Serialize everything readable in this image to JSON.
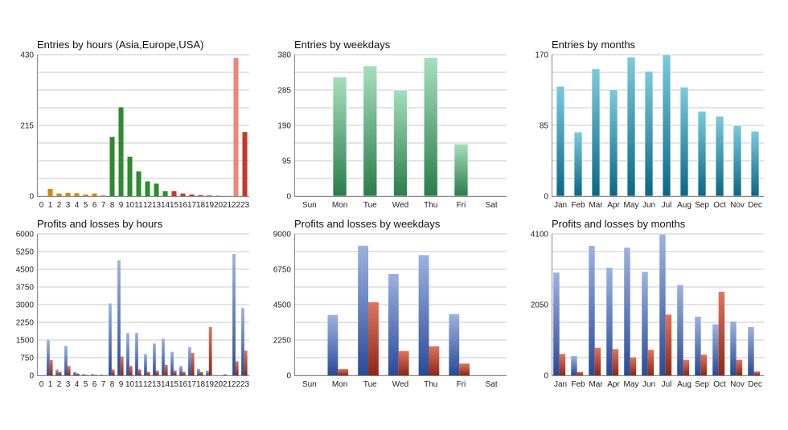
{
  "colors": {
    "orange": "#d38a0a",
    "green": "#2e8b2e",
    "red": "#c43a2a",
    "light_red": "#e8887c",
    "mint_top": "#a6dfbd",
    "mint_bottom": "#2a7d4a",
    "teal_top": "#7ccbdc",
    "teal_bottom": "#0a6785",
    "blue_top": "#9cb3e0",
    "blue_bottom": "#2a4a98",
    "loss_top": "#e0745d",
    "loss_bottom": "#8f2717",
    "grid": "#c8c8c8"
  },
  "chart_data": [
    {
      "id": "entries-hours",
      "type": "bar",
      "title": "Entries by hours (Asia,Europe,USA)",
      "categories": [
        "0",
        "1",
        "2",
        "3",
        "4",
        "5",
        "6",
        "7",
        "8",
        "9",
        "10",
        "11",
        "12",
        "13",
        "14",
        "15",
        "16",
        "17",
        "18",
        "19",
        "20",
        "21",
        "22",
        "23"
      ],
      "values": [
        0,
        22,
        8,
        10,
        9,
        5,
        8,
        2,
        180,
        270,
        120,
        75,
        45,
        38,
        15,
        15,
        8,
        5,
        3,
        2,
        1,
        0,
        420,
        195
      ],
      "bar_colors": [
        "orange",
        "orange",
        "orange",
        "orange",
        "orange",
        "orange",
        "orange",
        "orange",
        "green",
        "green",
        "green",
        "green",
        "green",
        "green",
        "green",
        "red",
        "red",
        "red",
        "red",
        "red",
        "red",
        "red",
        "light_red",
        "red"
      ],
      "yticks": [
        0,
        215,
        430
      ],
      "ylim": [
        0,
        430
      ],
      "grid": true
    },
    {
      "id": "entries-weekdays",
      "type": "bar",
      "title": "Entries by weekdays",
      "categories": [
        "Sun",
        "Mon",
        "Tue",
        "Wed",
        "Thu",
        "Fri",
        "Sat"
      ],
      "values": [
        0,
        320,
        350,
        285,
        372,
        140,
        0
      ],
      "yticks": [
        0,
        95,
        190,
        285,
        380
      ],
      "ylim": [
        0,
        380
      ],
      "grid": true
    },
    {
      "id": "entries-months",
      "type": "bar",
      "title": "Entries by months",
      "categories": [
        "Jan",
        "Feb",
        "Mar",
        "Apr",
        "May",
        "Jun",
        "Jul",
        "Aug",
        "Sep",
        "Oct",
        "Nov",
        "Dec"
      ],
      "values": [
        132,
        77,
        153,
        128,
        167,
        150,
        170,
        131,
        102,
        96,
        85,
        78
      ],
      "yticks": [
        0,
        85,
        170
      ],
      "ylim": [
        0,
        170
      ],
      "grid": true
    },
    {
      "id": "pl-hours",
      "type": "bar",
      "title": "Profits and losses by hours",
      "categories": [
        "0",
        "1",
        "2",
        "3",
        "4",
        "5",
        "6",
        "7",
        "8",
        "9",
        "10",
        "11",
        "12",
        "13",
        "14",
        "15",
        "16",
        "17",
        "18",
        "19",
        "20",
        "21",
        "22",
        "23"
      ],
      "series": [
        {
          "values": [
            0,
            1500,
            250,
            1250,
            150,
            50,
            50,
            30,
            3050,
            4880,
            1800,
            1800,
            900,
            1350,
            1550,
            1000,
            400,
            1200,
            280,
            200,
            0,
            50,
            5150,
            2850
          ]
        },
        {
          "values": [
            0,
            650,
            150,
            400,
            80,
            20,
            20,
            10,
            250,
            800,
            400,
            250,
            150,
            200,
            450,
            200,
            150,
            950,
            150,
            2050,
            0,
            0,
            600,
            1050
          ]
        }
      ],
      "yticks": [
        0,
        750,
        1500,
        2250,
        3000,
        3750,
        4500,
        5250,
        6000
      ],
      "ylim": [
        0,
        6000
      ],
      "grid": true
    },
    {
      "id": "pl-weekdays",
      "type": "bar",
      "title": "Profits and losses by weekdays",
      "categories": [
        "Sun",
        "Mon",
        "Tue",
        "Wed",
        "Thu",
        "Fri",
        "Sat"
      ],
      "series": [
        {
          "values": [
            0,
            3850,
            8250,
            6450,
            7650,
            3900,
            0
          ]
        },
        {
          "values": [
            0,
            400,
            4650,
            1550,
            1850,
            750,
            0
          ]
        }
      ],
      "yticks": [
        0,
        2250,
        4500,
        6750,
        9000
      ],
      "ylim": [
        0,
        9000
      ],
      "grid": true
    },
    {
      "id": "pl-months",
      "type": "bar",
      "title": "Profits and losses by months",
      "categories": [
        "Jan",
        "Feb",
        "Mar",
        "Apr",
        "May",
        "Jun",
        "Jul",
        "Aug",
        "Sep",
        "Oct",
        "Nov",
        "Dec"
      ],
      "series": [
        {
          "values": [
            2980,
            560,
            3750,
            3120,
            3700,
            3000,
            4080,
            2620,
            1700,
            1480,
            1560,
            1400
          ]
        },
        {
          "values": [
            620,
            100,
            800,
            760,
            520,
            740,
            1760,
            450,
            600,
            2420,
            450,
            110
          ]
        }
      ],
      "yticks": [
        0,
        2050,
        4100
      ],
      "ylim": [
        0,
        4100
      ],
      "grid": true
    }
  ]
}
